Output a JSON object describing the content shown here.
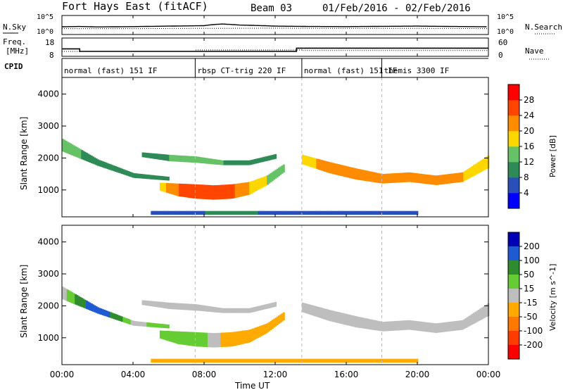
{
  "header": {
    "station": "Fort Hays East (fitACF)",
    "beam": "Beam 03",
    "date_range": "01/Feb/2016 - 02/Feb/2016"
  },
  "strip_labels": {
    "nsky": "N.Sky",
    "nsky_ticks": [
      "10^5",
      "10^0"
    ],
    "nsearch": "N.Search",
    "nsearch_ticks": [
      "10^5",
      "10^0"
    ],
    "freq": "Freq.",
    "freq_unit": "[MHz]",
    "freq_ticks": [
      "18",
      "8"
    ],
    "nave": "Nave",
    "nave_ticks": [
      "60",
      "0"
    ],
    "cpid": "CPID"
  },
  "cpid_segments": [
    {
      "label": "normal (fast) 151 IF",
      "start": 0.0
    },
    {
      "label": "rbsp CT-trig 220 IF",
      "start": 7.5
    },
    {
      "label": "normal (fast) 151 IF",
      "start": 13.5
    },
    {
      "label": "themis 3300 IF",
      "start": 18.0
    }
  ],
  "axes": {
    "xlabel": "Time UT",
    "x_ticks": [
      "00:00",
      "04:00",
      "08:00",
      "12:00",
      "16:00",
      "20:00",
      "00:00"
    ],
    "ylabel": "Slant Range [km]",
    "y_ticks": [
      "1000",
      "2000",
      "3000",
      "4000"
    ]
  },
  "colorbars": {
    "power": {
      "label": "Power [dB]",
      "ticks": [
        "4",
        "8",
        "12",
        "16",
        "20",
        "24",
        "28"
      ],
      "colors": [
        "#0000ff",
        "#2a4fb8",
        "#2e8b57",
        "#66c266",
        "#ffd700",
        "#ff8c00",
        "#ff4500",
        "#ff0000"
      ]
    },
    "velocity": {
      "label": "Velocity [m s^-1]",
      "ticks": [
        "200",
        "100",
        "50",
        "15",
        "-15",
        "-50",
        "-100",
        "-200"
      ],
      "colors": [
        "#0000b4",
        "#1e5ad2",
        "#2e8b2e",
        "#66cc33",
        "#bebebe",
        "#ffaa00",
        "#ff7800",
        "#ff3c00",
        "#ff0000"
      ]
    }
  },
  "chart_data": [
    {
      "type": "line",
      "title": "N.Sky / N.Search",
      "x_range_hours": [
        0,
        24
      ],
      "series": [
        {
          "name": "N.Sky",
          "x": [
            0,
            1,
            2,
            4,
            6,
            8,
            9,
            10,
            12,
            14,
            16,
            18,
            20,
            22,
            24
          ],
          "values": [
            100,
            120,
            90,
            110,
            150,
            200,
            600,
            300,
            150,
            120,
            110,
            130,
            150,
            120,
            100
          ]
        },
        {
          "name": "N.Search",
          "x": [
            0,
            4,
            8,
            12,
            16,
            20,
            24
          ],
          "values": [
            30,
            30,
            35,
            40,
            35,
            35,
            30
          ]
        }
      ]
    },
    {
      "type": "line",
      "title": "Freq. / Nave",
      "x_range_hours": [
        0,
        24
      ],
      "series": [
        {
          "name": "Freq.",
          "x": [
            0,
            1.0,
            1.0,
            13.2,
            13.2,
            24
          ],
          "values": [
            12.0,
            12.0,
            10.5,
            10.5,
            12.4,
            12.4
          ]
        },
        {
          "name": "Nave",
          "x": [
            0,
            7.5,
            7.5,
            13.5,
            13.5,
            24
          ],
          "values": [
            15,
            15,
            20,
            20,
            18,
            18
          ]
        }
      ]
    },
    {
      "type": "heatmap",
      "title": "Power",
      "x_range_hours": [
        0,
        24
      ],
      "y_range_km": [
        180,
        4500
      ],
      "z_label": "Power [dB]",
      "bands": [
        {
          "x": [
            0,
            2,
            4,
            6
          ],
          "center_km": [
            2400,
            1850,
            1450,
            1350
          ],
          "width_km": [
            400,
            200,
            150,
            120
          ],
          "power_db": [
            14,
            10,
            9,
            8
          ]
        },
        {
          "x": [
            5.5,
            6.5,
            7.5,
            8.5,
            9.5,
            10.5,
            11.5,
            12.5
          ],
          "center_km": [
            1100,
            1000,
            950,
            920,
            950,
            1050,
            1300,
            1700
          ],
          "width_km": [
            250,
            400,
            450,
            450,
            450,
            400,
            300,
            250
          ],
          "power_db": [
            18,
            24,
            27,
            27,
            25,
            20,
            16,
            14
          ]
        },
        {
          "x": [
            4.5,
            6,
            7.5,
            9,
            10.5,
            12
          ],
          "center_km": [
            2100,
            2000,
            1950,
            1850,
            1850,
            2050
          ],
          "width_km": [
            150,
            200,
            200,
            150,
            150,
            150
          ],
          "power_db": [
            10,
            12,
            13,
            12,
            11,
            10
          ]
        },
        {
          "x": [
            13.5,
            15,
            16.5,
            18,
            19.5,
            21,
            22.5,
            24
          ],
          "center_km": [
            1950,
            1700,
            1500,
            1350,
            1400,
            1300,
            1400,
            1900
          ],
          "width_km": [
            300,
            350,
            350,
            300,
            300,
            300,
            300,
            400
          ],
          "power_db": [
            18,
            22,
            23,
            22,
            21,
            22,
            20,
            16
          ]
        },
        {
          "x": [
            5,
            8,
            11,
            14,
            17,
            20
          ],
          "center_km": [
            280,
            280,
            280,
            280,
            280,
            280
          ],
          "width_km": [
            120,
            120,
            120,
            120,
            120,
            120
          ],
          "power_db": [
            6,
            8,
            8,
            6,
            5,
            5
          ]
        }
      ]
    },
    {
      "type": "heatmap",
      "title": "Velocity",
      "x_range_hours": [
        0,
        24
      ],
      "y_range_km": [
        180,
        4500
      ],
      "z_label": "Velocity [m s^-1]",
      "bands": [
        {
          "x": [
            0,
            2,
            4,
            6
          ],
          "center_km": [
            2400,
            1850,
            1450,
            1350
          ],
          "width_km": [
            400,
            200,
            150,
            120
          ],
          "velocity": [
            0,
            150,
            0,
            40
          ]
        },
        {
          "x": [
            5.5,
            6.5,
            7.5,
            8.5,
            9.5,
            10.5,
            11.5,
            12.5
          ],
          "center_km": [
            1100,
            1000,
            950,
            920,
            950,
            1050,
            1300,
            1700
          ],
          "width_km": [
            250,
            400,
            450,
            450,
            450,
            400,
            300,
            250
          ],
          "velocity": [
            40,
            40,
            40,
            0,
            -40,
            -40,
            -40,
            -40
          ]
        },
        {
          "x": [
            4.5,
            6,
            7.5,
            9,
            10.5,
            12
          ],
          "center_km": [
            2100,
            2000,
            1950,
            1850,
            1850,
            2050
          ],
          "width_km": [
            150,
            200,
            200,
            150,
            150,
            150
          ],
          "velocity": [
            0,
            0,
            0,
            0,
            0,
            0
          ]
        },
        {
          "x": [
            13.5,
            15,
            16.5,
            18,
            19.5,
            21,
            22.5,
            24
          ],
          "center_km": [
            1950,
            1700,
            1500,
            1350,
            1400,
            1300,
            1400,
            1900
          ],
          "width_km": [
            300,
            350,
            350,
            300,
            300,
            300,
            300,
            400
          ],
          "velocity": [
            0,
            0,
            0,
            0,
            0,
            0,
            0,
            0
          ]
        },
        {
          "x": [
            5,
            8,
            11,
            14,
            17,
            20
          ],
          "center_km": [
            280,
            280,
            280,
            280,
            280,
            280
          ],
          "width_km": [
            120,
            120,
            120,
            120,
            120,
            120
          ],
          "velocity": [
            -40,
            -40,
            -40,
            -40,
            -40,
            -40
          ]
        }
      ]
    }
  ]
}
